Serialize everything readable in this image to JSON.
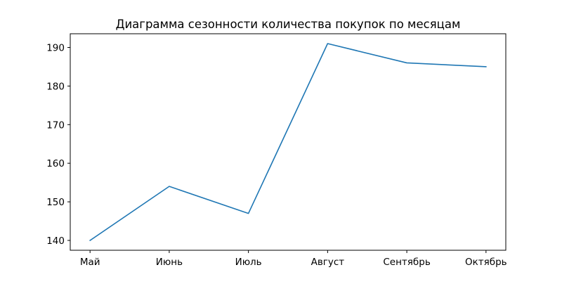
{
  "chart_data": {
    "type": "line",
    "title": "Диаграмма сезонности количества покупок по месяцам",
    "xlabel": "",
    "ylabel": "",
    "categories": [
      "Май",
      "Июнь",
      "Июль",
      "Август",
      "Сентябрь",
      "Октябрь"
    ],
    "series": [
      {
        "values": [
          140,
          154,
          147,
          191,
          186,
          185
        ],
        "color": "#1f77b4"
      }
    ],
    "yticks": [
      140,
      150,
      160,
      170,
      180,
      190
    ],
    "ylim": [
      137.45,
      193.55
    ],
    "grid": false,
    "legend": "none"
  }
}
